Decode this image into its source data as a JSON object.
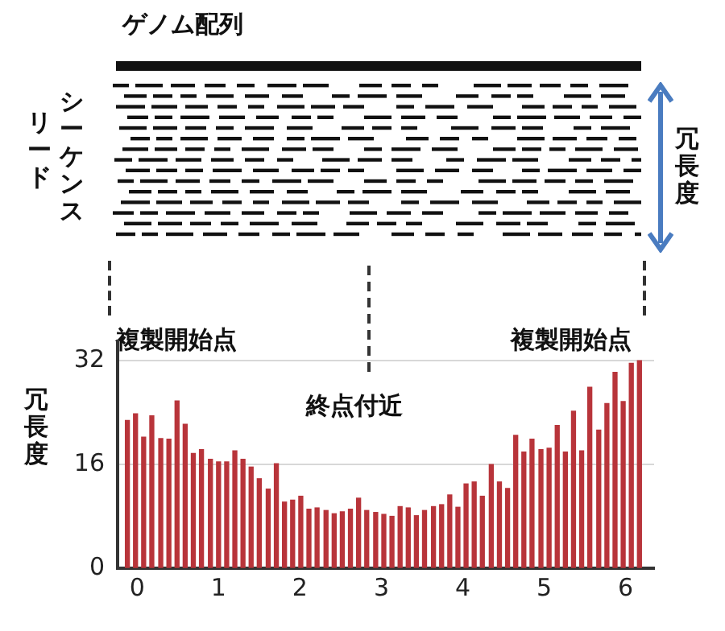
{
  "chart_data": {
    "type": "bar",
    "ylabel": "冗長度",
    "annotations": [
      "ゲノム配列",
      "シーケンス",
      "リード",
      "冗長度",
      "複製開始点",
      "複製開始点",
      "終点付近"
    ],
    "x": [
      -0.12,
      -0.02,
      0.08,
      0.18,
      0.29,
      0.39,
      0.49,
      0.59,
      0.69,
      0.79,
      0.9,
      1.0,
      1.1,
      1.2,
      1.3,
      1.4,
      1.5,
      1.61,
      1.71,
      1.81,
      1.91,
      2.01,
      2.11,
      2.21,
      2.32,
      2.42,
      2.52,
      2.62,
      2.72,
      2.82,
      2.93,
      3.03,
      3.13,
      3.23,
      3.33,
      3.43,
      3.53,
      3.64,
      3.74,
      3.84,
      3.94,
      4.04,
      4.14,
      4.24,
      4.35,
      4.45,
      4.55,
      4.65,
      4.75,
      4.85,
      4.96,
      5.06,
      5.16,
      5.26,
      5.36,
      5.46,
      5.56,
      5.67,
      5.77,
      5.87,
      5.97,
      6.07,
      6.17
    ],
    "values": [
      22.8,
      23.8,
      20.2,
      23.5,
      20.0,
      19.9,
      25.8,
      22.2,
      17.7,
      18.3,
      16.8,
      16.4,
      16.4,
      18.1,
      16.8,
      15.6,
      13.8,
      12.2,
      16.1,
      10.2,
      10.5,
      11.1,
      9.1,
      9.3,
      8.9,
      8.4,
      8.7,
      9.1,
      10.8,
      8.9,
      8.6,
      8.3,
      8.0,
      9.5,
      9.3,
      8.1,
      8.9,
      9.5,
      9.8,
      11.3,
      9.4,
      13.0,
      13.3,
      11.1,
      16.0,
      13.3,
      12.3,
      20.5,
      17.9,
      19.9,
      18.3,
      18.5,
      22.0,
      17.9,
      24.2,
      18.1,
      27.9,
      21.3,
      25.4,
      30.2,
      25.7,
      31.6,
      32
    ],
    "color": "#b8343a",
    "xlim": [
      -0.24,
      6.35
    ],
    "xticks": [
      0,
      1,
      2,
      3,
      4,
      5,
      6
    ],
    "ylim": [
      0,
      35
    ],
    "yticks": [
      0,
      16,
      32
    ],
    "grid": "y"
  }
}
